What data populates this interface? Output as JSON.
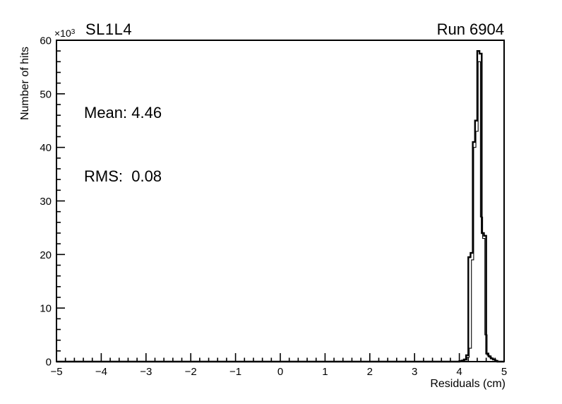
{
  "header": {
    "title": "SL1L4",
    "run_label": "Run 6904",
    "y_multiplier_base": "×10",
    "y_multiplier_exp": "3"
  },
  "stats": {
    "mean_text": "Mean: 4.46",
    "rms_text": "RMS:  0.08",
    "mean": 4.46,
    "rms": 0.08
  },
  "chart_data": {
    "type": "bar",
    "style": "step-histogram-outline",
    "title": "SL1L4",
    "corner_annotation": "Run 6904",
    "annotations": [
      "Mean: 4.46",
      "RMS:  0.08"
    ],
    "xlabel": "Residuals (cm)",
    "ylabel": "Number of hits",
    "y_axis_multiplier": "×10³",
    "counts_unit": "×10³ hits",
    "xlim": [
      -5,
      5
    ],
    "ylim": [
      0,
      60
    ],
    "x_major_ticks": [
      -5,
      -4,
      -3,
      -2,
      -1,
      0,
      1,
      2,
      3,
      4,
      5
    ],
    "x_minor_step": 0.2,
    "y_major_ticks": [
      0,
      10,
      20,
      30,
      40,
      50,
      60
    ],
    "y_minor_step": 2,
    "grid": false,
    "line_color": "#000000",
    "background_color": "#ffffff",
    "series": [
      {
        "name": "residuals-histogram-outer",
        "line_width": 2.4,
        "bin_width": 0.05,
        "bin_start": 4.0,
        "counts_k": [
          0.1,
          0.2,
          0.4,
          1.2,
          19.5,
          20.3,
          41,
          45,
          58,
          57.5,
          24,
          23.5,
          1.5,
          1.0,
          0.6,
          0.4,
          0.15,
          0
        ]
      },
      {
        "name": "residuals-histogram-inner",
        "line_width": 1.1,
        "bin_width": 0.05,
        "bin_start": 4.02,
        "counts_k": [
          0.05,
          0.15,
          0.3,
          0.8,
          2.5,
          19,
          40,
          43,
          56,
          27,
          23,
          5,
          1.2,
          0.8,
          0.5,
          0.3,
          0.1,
          0
        ]
      }
    ]
  }
}
